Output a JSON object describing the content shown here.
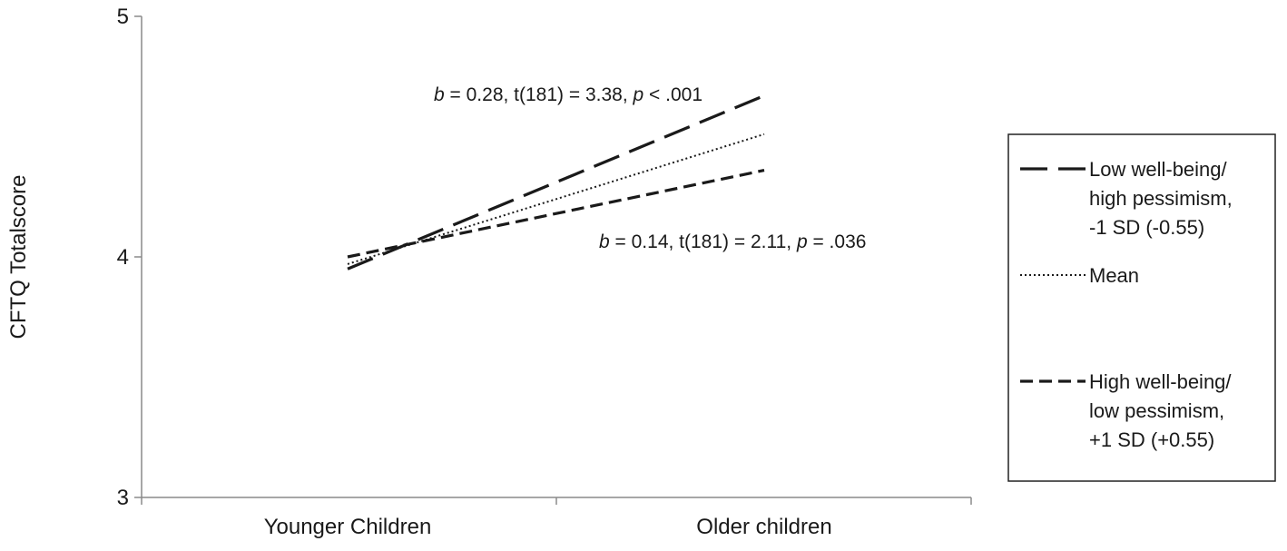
{
  "chart_data": {
    "type": "line",
    "title": "",
    "xlabel": "",
    "ylabel": "CFTQ Totalscore",
    "ylim": [
      3,
      5
    ],
    "yticks": [
      3,
      4,
      5
    ],
    "categories": [
      "Younger Children",
      "Older children"
    ],
    "grid": false,
    "legend_position": "right",
    "series": [
      {
        "name_lines": [
          "Low well-being/",
          "high pessimism,",
          "-1 SD (-0.55)"
        ],
        "values": [
          3.95,
          4.67
        ],
        "style": "long-dash",
        "color": "#1a1a1a"
      },
      {
        "name_lines": [
          "Mean"
        ],
        "values": [
          3.97,
          4.51
        ],
        "style": "dotted",
        "color": "#1a1a1a"
      },
      {
        "name_lines": [
          "High well-being/",
          "low pessimism,",
          "+1 SD (+0.55)"
        ],
        "values": [
          4.0,
          4.36
        ],
        "style": "short-dash",
        "color": "#1a1a1a"
      }
    ],
    "annotations": [
      {
        "series_index": 0,
        "parts": [
          {
            "text": "b",
            "italic": true
          },
          {
            "text": " = 0.28, t(181) = 3.38, "
          },
          {
            "text": "p",
            "italic": true
          },
          {
            "text": " < .001"
          }
        ]
      },
      {
        "series_index": 2,
        "parts": [
          {
            "text": "b",
            "italic": true
          },
          {
            "text": " = 0.14, t(181) = 2.11, "
          },
          {
            "text": "p",
            "italic": true
          },
          {
            "text": " = .036"
          }
        ]
      }
    ]
  }
}
